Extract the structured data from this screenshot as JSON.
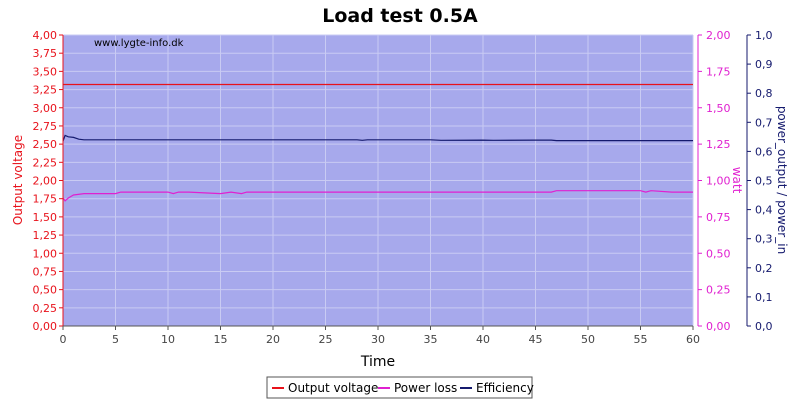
{
  "chart_data": {
    "type": "line",
    "title": "Load test 0.5A",
    "watermark": "www.lygte-info.dk",
    "xlabel": "Time",
    "x_range": [
      0,
      60
    ],
    "x_ticks": [
      "0",
      "5",
      "10",
      "15",
      "20",
      "25",
      "30",
      "35",
      "40",
      "45",
      "50",
      "55",
      "60"
    ],
    "y_left": {
      "label": "Output voltage",
      "range": [
        0,
        4
      ],
      "ticks": [
        "0,00",
        "0,25",
        "0,50",
        "0,75",
        "1,00",
        "1,25",
        "1,50",
        "1,75",
        "2,00",
        "2,25",
        "2,50",
        "2,75",
        "3,00",
        "3,25",
        "3,50",
        "3,75",
        "4,00"
      ]
    },
    "y_right1": {
      "label": "watt",
      "range": [
        0,
        2
      ],
      "ticks": [
        "0,00",
        "0,25",
        "0,50",
        "0,75",
        "1,00",
        "1,25",
        "1,50",
        "1,75",
        "2,00"
      ]
    },
    "y_right2": {
      "label": "power_output / power_in",
      "range": [
        0,
        1
      ],
      "ticks": [
        "0,0",
        "0,1",
        "0,2",
        "0,3",
        "0,4",
        "0,5",
        "0,6",
        "0,7",
        "0,8",
        "0,9",
        "1,0"
      ]
    },
    "grid": true,
    "legend_position": "bottom",
    "colors": {
      "plot_background": "#a7a9ec",
      "grid": "#c9cbf3",
      "output_voltage": "#e8121b",
      "power_loss": "#e020d0",
      "efficiency": "#151a6e",
      "left_axis": "#e8121b",
      "right_axis1": "#e020d0",
      "right_axis2": "#151a6e"
    },
    "series": [
      {
        "name": "Output voltage",
        "axis": "left",
        "x": [
          0,
          10,
          20,
          30,
          40,
          50,
          60
        ],
        "values": [
          3.32,
          3.32,
          3.32,
          3.32,
          3.32,
          3.32,
          3.32
        ]
      },
      {
        "name": "Power loss",
        "axis": "right1",
        "x": [
          0,
          0.2,
          0.5,
          1,
          2,
          3,
          5,
          5.5,
          10,
          10.5,
          11,
          12,
          15,
          16,
          17,
          17.5,
          20,
          25,
          30,
          35,
          40,
          45,
          46.5,
          47,
          50,
          55,
          55.5,
          56,
          58,
          60
        ],
        "values": [
          0.88,
          0.86,
          0.88,
          0.9,
          0.91,
          0.91,
          0.91,
          0.92,
          0.92,
          0.91,
          0.92,
          0.92,
          0.91,
          0.92,
          0.91,
          0.92,
          0.92,
          0.92,
          0.92,
          0.92,
          0.92,
          0.92,
          0.92,
          0.93,
          0.93,
          0.93,
          0.92,
          0.93,
          0.92,
          0.92
        ]
      },
      {
        "name": "Efficiency",
        "axis": "right2",
        "x": [
          0,
          0.2,
          0.5,
          1,
          1.5,
          2,
          5,
          10,
          15,
          20,
          25,
          28,
          28.5,
          29,
          35,
          36,
          40,
          41,
          45,
          46.5,
          47,
          50,
          55,
          60
        ],
        "values": [
          0.635,
          0.655,
          0.65,
          0.648,
          0.642,
          0.64,
          0.64,
          0.64,
          0.64,
          0.64,
          0.64,
          0.64,
          0.638,
          0.64,
          0.64,
          0.638,
          0.639,
          0.638,
          0.639,
          0.639,
          0.637,
          0.637,
          0.637,
          0.637
        ]
      }
    ]
  }
}
